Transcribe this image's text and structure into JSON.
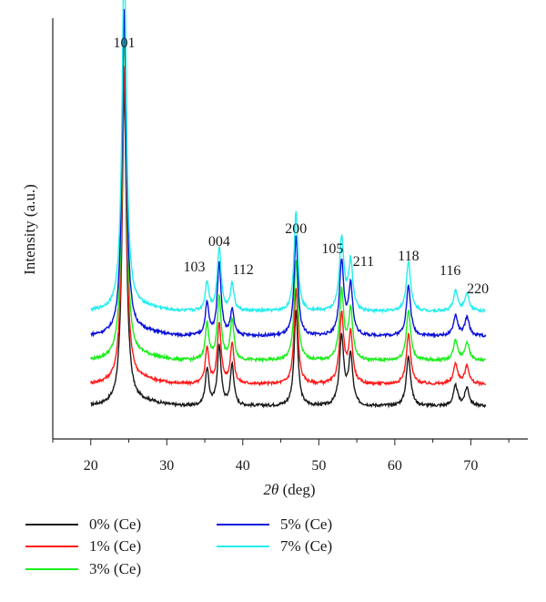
{
  "chart_data": {
    "type": "line",
    "xlabel_var": "2θ",
    "xlabel_unit": " (deg)",
    "ylabel": "Intensity (a.u.)",
    "xlim": [
      15,
      77.5
    ],
    "xticks": [
      20,
      30,
      40,
      50,
      60,
      70
    ],
    "yticks_shown": false,
    "grid": false,
    "legend_position": "bottom",
    "peaks": [
      {
        "label": "101",
        "x": 24.4
      },
      {
        "label": "103",
        "x": 35.3
      },
      {
        "label": "004",
        "x": 36.9
      },
      {
        "label": "112",
        "x": 38.6
      },
      {
        "label": "200",
        "x": 47.0
      },
      {
        "label": "105",
        "x": 53.0
      },
      {
        "label": "211",
        "x": 54.2
      },
      {
        "label": "118",
        "x": 61.8
      },
      {
        "label": "116",
        "x": 68.0
      },
      {
        "label": "220",
        "x": 69.5
      }
    ],
    "series": [
      {
        "name": "0% (Ce)",
        "color": "#1a1a1a",
        "offset": 0,
        "peak_heights": [
          330,
          40,
          65,
          45,
          105,
          70,
          50,
          55,
          22,
          20
        ]
      },
      {
        "name": "1% (Ce)",
        "color": "#ff1a1a",
        "offset": 24,
        "peak_heights": [
          330,
          40,
          65,
          45,
          105,
          70,
          50,
          55,
          22,
          20
        ]
      },
      {
        "name": "3% (Ce)",
        "color": "#1aee1a",
        "offset": 50,
        "peak_heights": [
          350,
          40,
          70,
          45,
          110,
          70,
          50,
          55,
          22,
          20
        ]
      },
      {
        "name": "5% (Ce)",
        "color": "#0a10d8",
        "offset": 77,
        "peak_heights": [
          340,
          35,
          80,
          28,
          110,
          75,
          50,
          55,
          22,
          20
        ]
      },
      {
        "name": "7% (Ce)",
        "color": "#22eeee",
        "offset": 104,
        "peak_heights": [
          378,
          32,
          70,
          30,
          110,
          75,
          50,
          55,
          22,
          20
        ]
      }
    ]
  }
}
